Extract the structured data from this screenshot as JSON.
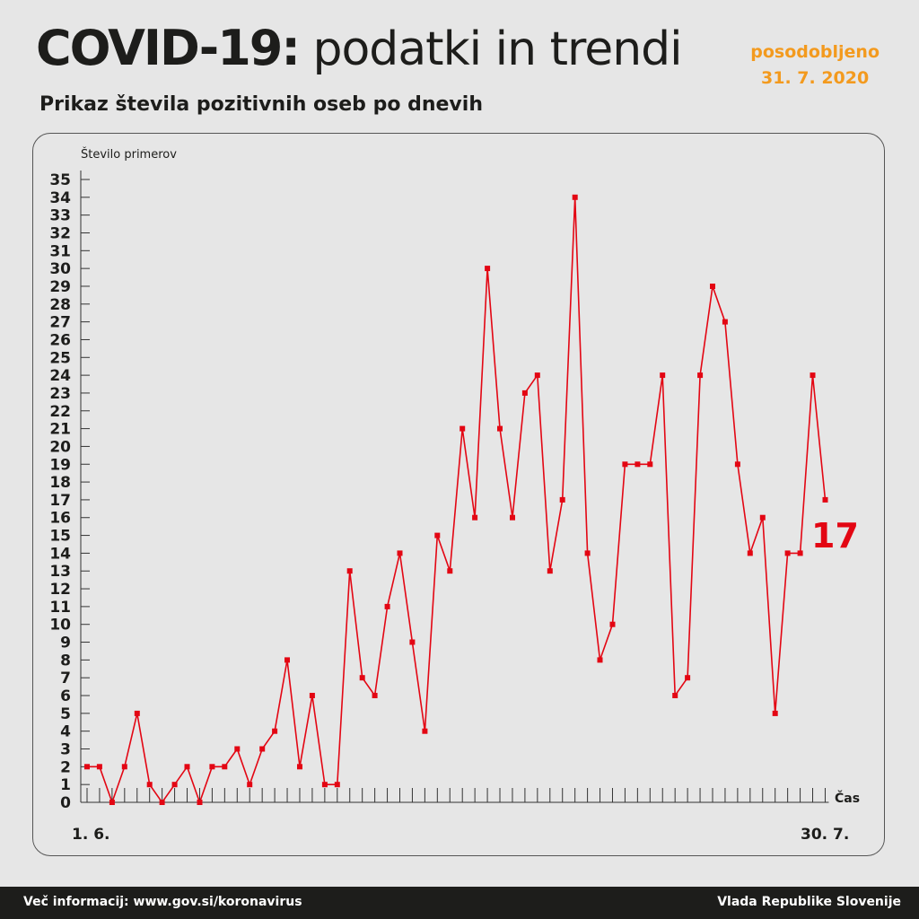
{
  "header": {
    "title_bold": "COVID-19:",
    "title_light": " podatki in trendi",
    "updated_label": "posodobljeno",
    "updated_date": "31. 7. 2020",
    "subtitle": "Prikaz števila pozitivnih oseb po dnevih"
  },
  "colors": {
    "accent": "#f39a1e",
    "series": "#e30613",
    "text": "#1d1d1b",
    "background": "#e6e6e6"
  },
  "chart_data": {
    "type": "line",
    "title": "Prikaz števila pozitivnih oseb po dnevih",
    "ylabel": "Število primerov",
    "xlabel": "Čas",
    "x_start_label": "1. 6.",
    "x_end_label": "30. 7.",
    "ylim": [
      0,
      35
    ],
    "yticks": [
      0,
      1,
      2,
      3,
      4,
      5,
      6,
      7,
      8,
      9,
      10,
      11,
      12,
      13,
      14,
      15,
      16,
      17,
      18,
      19,
      20,
      21,
      22,
      23,
      24,
      25,
      26,
      27,
      28,
      29,
      30,
      31,
      32,
      33,
      34,
      35
    ],
    "grid": false,
    "last_value_label": "17",
    "series": [
      {
        "values": [
          2,
          2,
          0,
          2,
          5,
          1,
          0,
          1,
          2,
          0,
          2,
          2,
          3,
          1,
          3,
          4,
          8,
          2,
          6,
          1,
          1,
          13,
          7,
          6,
          11,
          14,
          9,
          4,
          15,
          13,
          21,
          16,
          30,
          21,
          16,
          23,
          24,
          13,
          17,
          34,
          14,
          8,
          10,
          19,
          19,
          19,
          24,
          6,
          7,
          24,
          29,
          27,
          19,
          14,
          16,
          5,
          14,
          14,
          24,
          17
        ]
      }
    ]
  },
  "footer": {
    "info": "Več informacij: www.gov.si/koronavirus",
    "org": "Vlada Republike Slovenije"
  }
}
